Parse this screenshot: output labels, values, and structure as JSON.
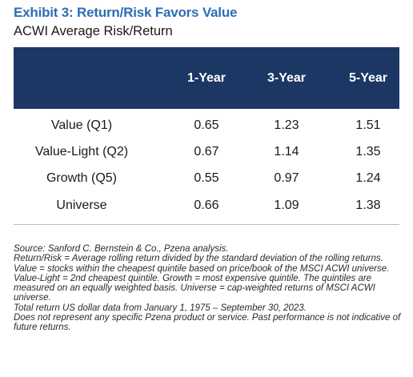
{
  "title": "Exhibit 3: Return/Risk Favors Value",
  "subtitle": "ACWI Average Risk/Return",
  "columns": [
    "1-Year",
    "3-Year",
    "5-Year"
  ],
  "rows": [
    {
      "label": "Value (Q1)",
      "values": [
        "0.65",
        "1.23",
        "1.51"
      ]
    },
    {
      "label": "Value-Light (Q2)",
      "values": [
        "0.67",
        "1.14",
        "1.35"
      ]
    },
    {
      "label": "Growth (Q5)",
      "values": [
        "0.55",
        "0.97",
        "1.24"
      ]
    },
    {
      "label": "Universe",
      "values": [
        "0.66",
        "1.09",
        "1.38"
      ]
    }
  ],
  "notes": [
    "Source: Sanford C. Bernstein & Co., Pzena analysis.",
    "Return/Risk = Average rolling return divided by the standard deviation of the rolling returns.",
    "Value = stocks within the cheapest quintile based on price/book of the MSCI ACWI universe. Value-Light = 2nd cheapest quintile. Growth = most expensive quintile. The quintiles are measured on an equally weighted basis. Universe = cap-weighted returns of MSCI ACWI universe.",
    "Total return US dollar data from January 1, 1975 – September 30, 2023.",
    "Does not represent any specific Pzena product or service. Past performance is not indicative of future returns."
  ],
  "colors": {
    "title": "#2e6db5",
    "header_bg": "#1d3764",
    "header_text": "#ffffff"
  }
}
